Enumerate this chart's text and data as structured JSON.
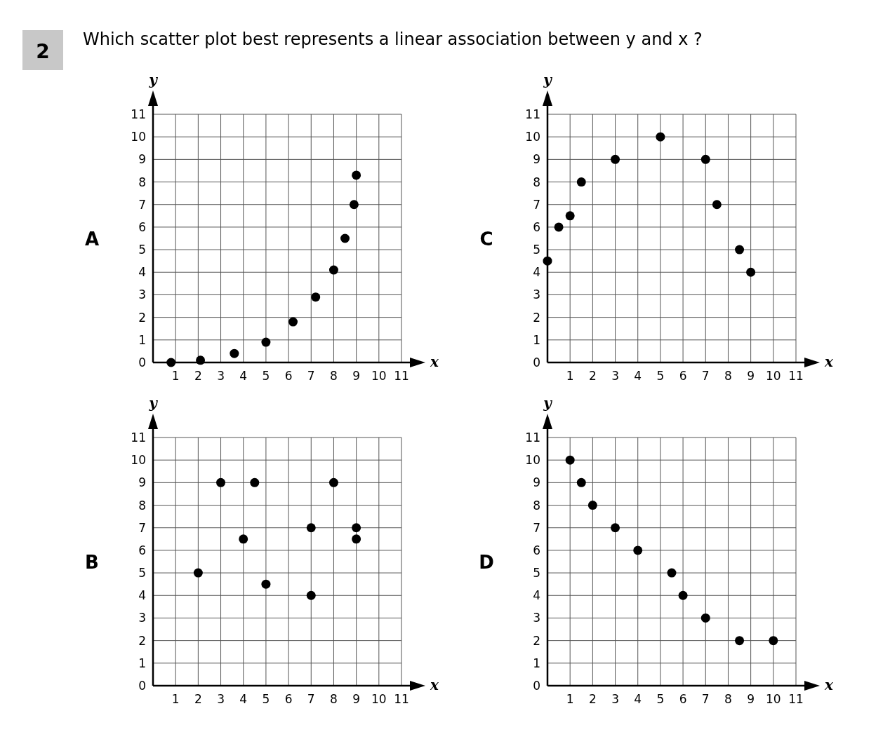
{
  "chart_data": [
    {
      "type": "scatter",
      "title": "A",
      "xlabel": "x",
      "ylabel": "y",
      "annotations": [
        "2",
        "Which scatter plot best represents a linear association between y and x ?"
      ],
      "x": [
        0.8,
        2.1,
        3.6,
        5.0,
        6.2,
        7.2,
        8.0,
        8.5,
        8.9,
        9.0
      ],
      "values": [
        0,
        0.1,
        0.4,
        0.9,
        1.8,
        2.9,
        4.1,
        5.5,
        7.0,
        8.3
      ],
      "color": "#000000",
      "marker": "circle",
      "grid": true,
      "xlim": [
        0,
        11
      ],
      "ylim": [
        0,
        11
      ],
      "xticks": [
        1,
        2,
        3,
        4,
        5,
        6,
        7,
        8,
        9,
        10,
        11
      ],
      "yticks": [
        0,
        1,
        2,
        3,
        4,
        5,
        6,
        7,
        8,
        9,
        10,
        11
      ]
    },
    {
      "type": "scatter",
      "title": "C",
      "xlabel": "x",
      "ylabel": "y",
      "x": [
        0,
        0.5,
        1,
        1.5,
        3,
        5,
        7,
        7.5,
        8.5,
        9
      ],
      "values": [
        4.5,
        6,
        6.5,
        8,
        9,
        10,
        9,
        7,
        5,
        4
      ],
      "color": "#000000",
      "marker": "circle",
      "grid": true,
      "xlim": [
        0,
        11
      ],
      "ylim": [
        0,
        11
      ],
      "xticks": [
        1,
        2,
        3,
        4,
        5,
        6,
        7,
        8,
        9,
        10,
        11
      ],
      "yticks": [
        0,
        1,
        2,
        3,
        4,
        5,
        6,
        7,
        8,
        9,
        10,
        11
      ]
    },
    {
      "type": "scatter",
      "title": "B",
      "xlabel": "x",
      "ylabel": "y",
      "x": [
        2,
        3,
        4,
        4.5,
        5,
        7,
        7,
        8,
        9,
        9
      ],
      "values": [
        5,
        9,
        6.5,
        9,
        4.5,
        7,
        4,
        9,
        7,
        6.5
      ],
      "color": "#000000",
      "marker": "circle",
      "grid": true,
      "xlim": [
        0,
        11
      ],
      "ylim": [
        0,
        11
      ],
      "xticks": [
        1,
        2,
        3,
        4,
        5,
        6,
        7,
        8,
        9,
        10,
        11
      ],
      "yticks": [
        0,
        1,
        2,
        3,
        4,
        5,
        6,
        7,
        8,
        9,
        10,
        11
      ]
    },
    {
      "type": "scatter",
      "title": "D",
      "xlabel": "x",
      "ylabel": "y",
      "x": [
        1,
        1.5,
        2,
        3,
        4,
        5.5,
        6,
        7,
        8.5,
        10
      ],
      "values": [
        10,
        9,
        8,
        7,
        6,
        5,
        4,
        3,
        2,
        2
      ],
      "color": "#000000",
      "marker": "circle",
      "grid": true,
      "xlim": [
        0,
        11
      ],
      "ylim": [
        0,
        11
      ],
      "xticks": [
        1,
        2,
        3,
        4,
        5,
        6,
        7,
        8,
        9,
        10,
        11
      ],
      "yticks": [
        0,
        1,
        2,
        3,
        4,
        5,
        6,
        7,
        8,
        9,
        10,
        11
      ]
    }
  ]
}
